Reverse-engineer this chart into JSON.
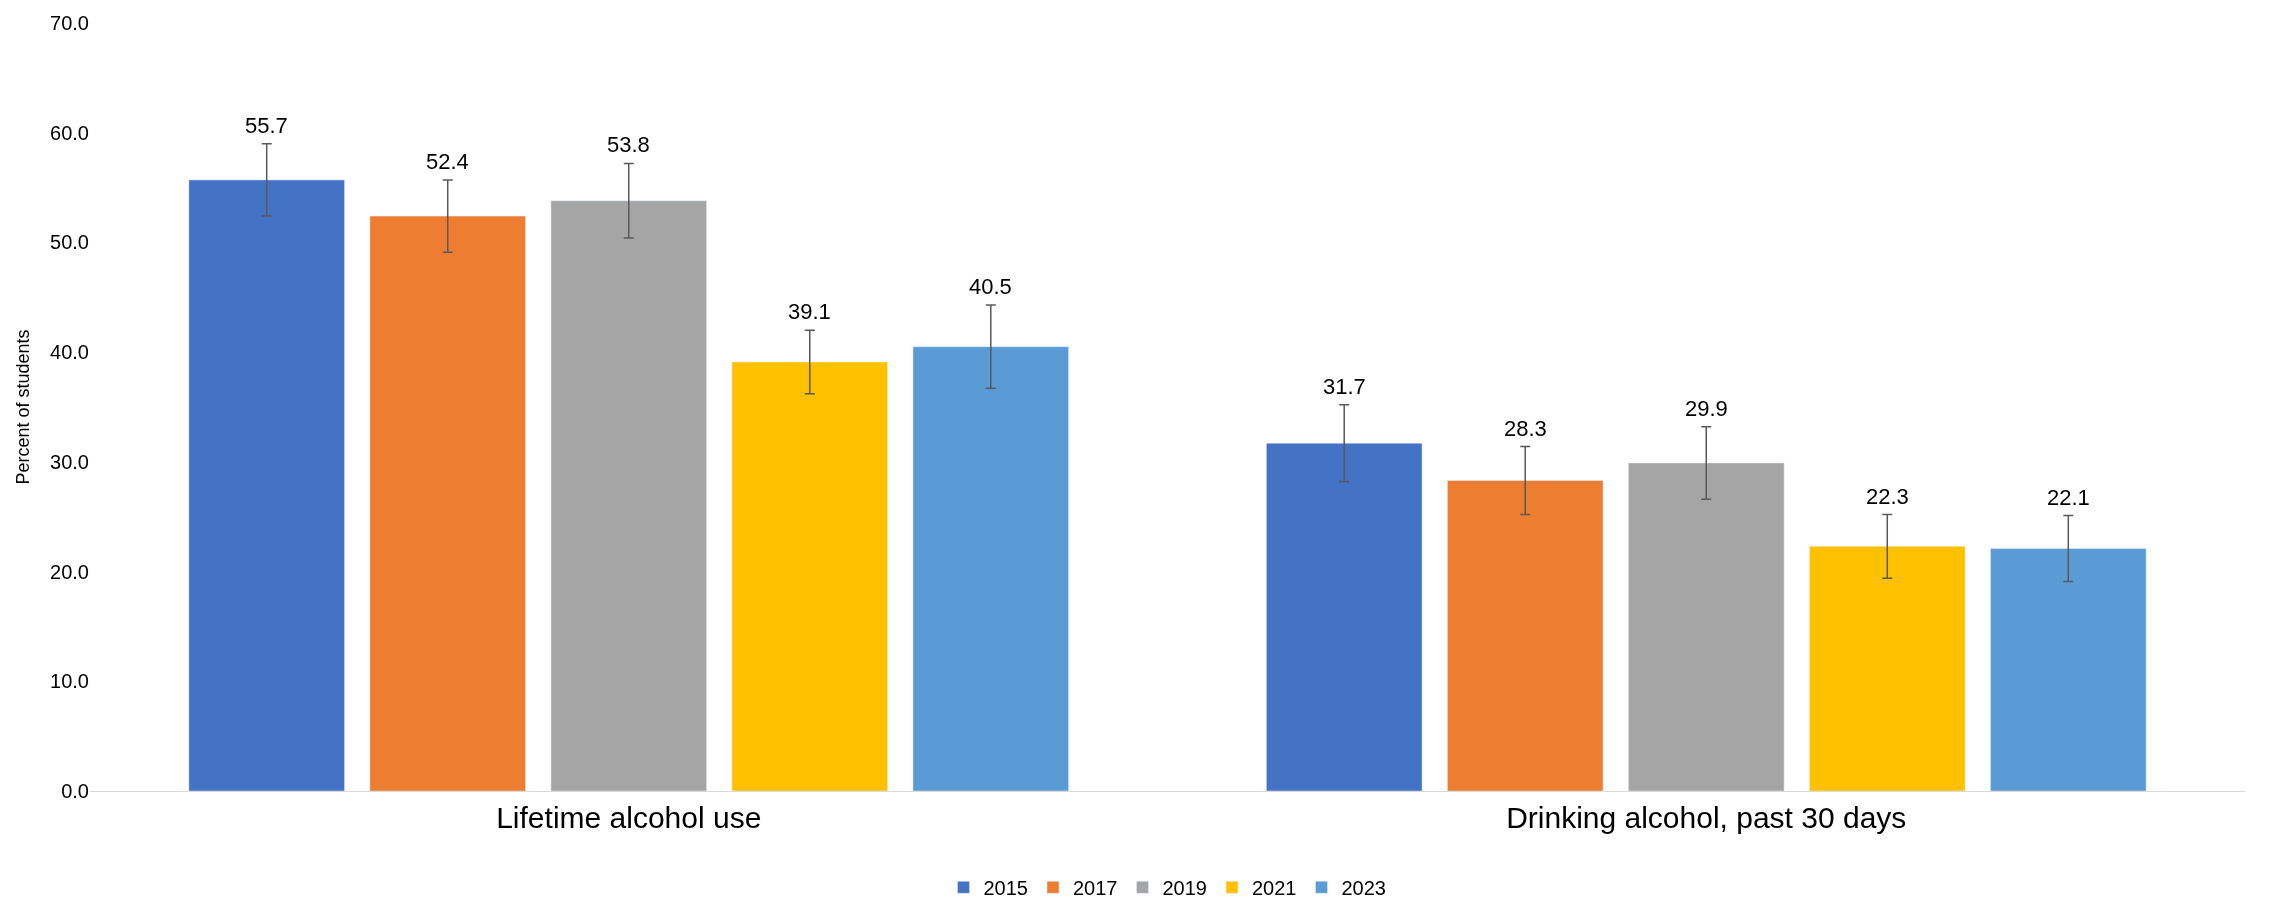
{
  "chart_data": {
    "type": "bar",
    "ylabel": "Percent of students",
    "categories": [
      "Lifetime alcohol use",
      "Drinking alcohol, past 30 days"
    ],
    "series": [
      {
        "name": "2015",
        "color": "#4472c4",
        "values": [
          55.7,
          31.7
        ],
        "errors": [
          3.3,
          3.5
        ]
      },
      {
        "name": "2017",
        "color": "#ed7d31",
        "values": [
          52.4,
          28.3
        ],
        "errors": [
          3.3,
          3.1
        ]
      },
      {
        "name": "2019",
        "color": "#a5a5a5",
        "values": [
          53.8,
          29.9
        ],
        "errors": [
          3.4,
          3.3
        ]
      },
      {
        "name": "2021",
        "color": "#ffc000",
        "values": [
          39.1,
          22.3
        ],
        "errors": [
          2.9,
          2.9
        ]
      },
      {
        "name": "2023",
        "color": "#5b9bd5",
        "values": [
          40.5,
          22.1
        ],
        "errors": [
          3.8,
          3.0
        ]
      }
    ],
    "ylim": [
      0,
      70
    ],
    "yticks": [
      {
        "value": 0,
        "label": "0.0"
      },
      {
        "value": 10,
        "label": "10.0"
      },
      {
        "value": 20,
        "label": "20.0"
      },
      {
        "value": 30,
        "label": "30.0"
      },
      {
        "value": 40,
        "label": "40.0"
      },
      {
        "value": 50,
        "label": "50.0"
      },
      {
        "value": 60,
        "label": "60.0"
      },
      {
        "value": 70,
        "label": "70.0"
      }
    ],
    "data_labels": true,
    "grid": false,
    "legend": "bottom"
  }
}
